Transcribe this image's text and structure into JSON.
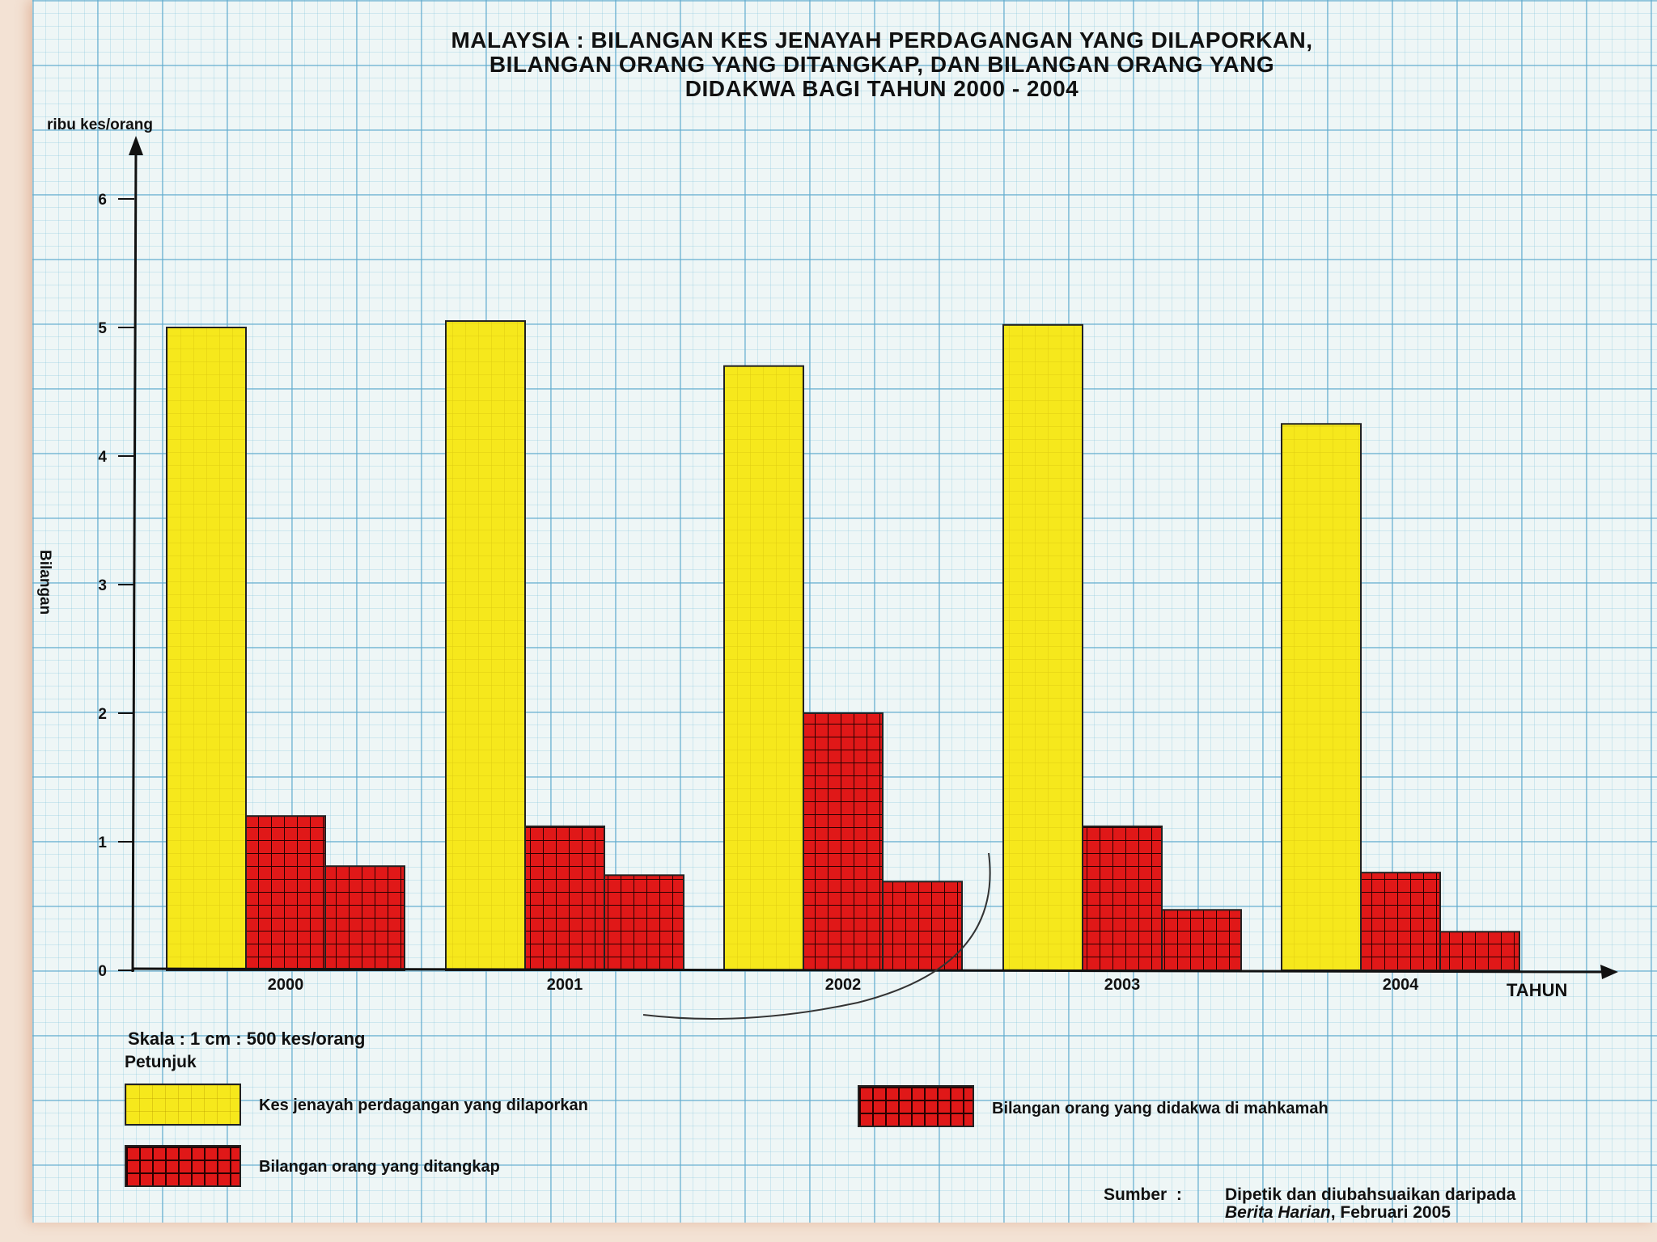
{
  "title_lines": [
    "MALAYSIA : BILANGAN KES JENAYAH PERDAGANGAN YANG DILAPORKAN,",
    "BILANGAN ORANG YANG DITANGKAP, DAN BILANGAN ORANG YANG",
    "DIDAKWA BAGI TAHUN 2000 - 2004"
  ],
  "scale_text": "Skala : 1 cm : 500 kes/orang",
  "legend_heading": "Petunjuk",
  "source": {
    "label": "Sumber",
    "separator": ":",
    "line1": "Dipetik dan diubahsuaikan daripada",
    "publication": "Berita Harian",
    "line2_rest": ", Februari 2005"
  },
  "colors": {
    "reported": "#f6e81c",
    "arrested": "#e01818",
    "charged": "#e01818",
    "grid_line": "#5faacd"
  },
  "chart_data": {
    "type": "bar",
    "title": "MALAYSIA : BILANGAN KES JENAYAH PERDAGANGAN YANG DILAPORKAN, BILANGAN ORANG YANG DITANGKAP, DAN BILANGAN ORANG YANG DIDAKWA BAGI TAHUN 2000 - 2004",
    "xlabel": "TAHUN",
    "ylabel": "Bilangan",
    "yunit": "ribu kes/orang",
    "categories": [
      "2000",
      "2001",
      "2002",
      "2003",
      "2004"
    ],
    "yticks": [
      "0",
      "1",
      "2",
      "3",
      "4",
      "5",
      "6"
    ],
    "ylim": [
      0,
      6
    ],
    "grid": true,
    "legend_position": "bottom",
    "series": [
      {
        "name": "Kes jenayah perdagangan yang dilaporkan",
        "pattern": "yellow-plain",
        "values": [
          5.0,
          5.05,
          4.7,
          5.02,
          4.25
        ]
      },
      {
        "name": "Bilangan orang yang ditangkap",
        "pattern": "red-grid",
        "values": [
          1.2,
          1.12,
          2.0,
          1.12,
          0.76
        ]
      },
      {
        "name": "Bilangan orang yang didakwa di mahkamah",
        "pattern": "red-grid",
        "values": [
          0.81,
          0.74,
          0.69,
          0.47,
          0.3
        ]
      }
    ]
  }
}
